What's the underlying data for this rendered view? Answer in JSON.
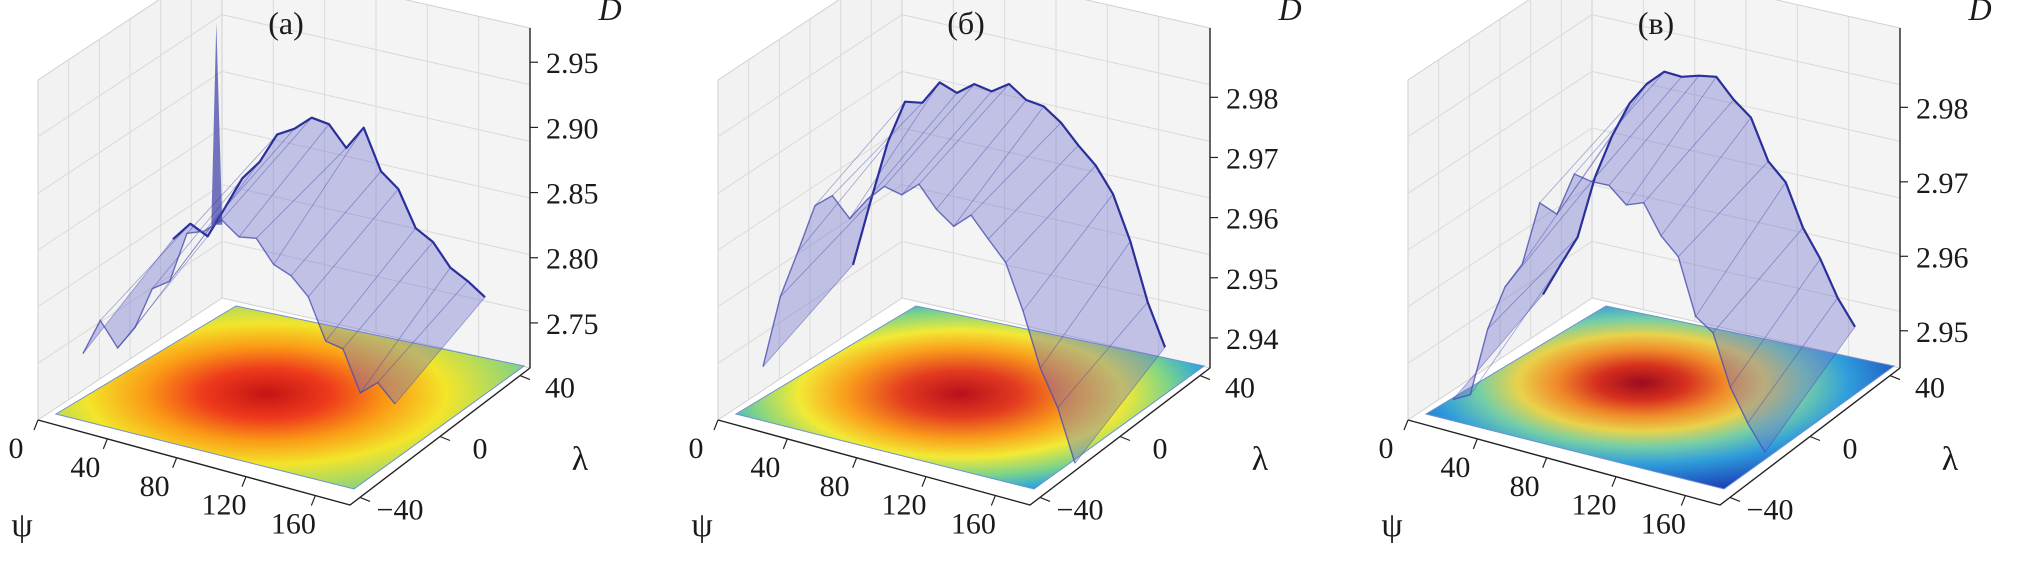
{
  "chart_data": [
    {
      "type": "surface3d",
      "title": "(а)",
      "xlabel": "ψ",
      "ylabel": "λ",
      "zlabel": "D",
      "x_ticks": [
        "0",
        "40",
        "80",
        "120",
        "160"
      ],
      "y_ticks": [
        "−40",
        "0",
        "40"
      ],
      "z_ticks": [
        "2.75",
        "2.80",
        "2.85",
        "2.90",
        "2.95"
      ],
      "xlim": [
        0,
        180
      ],
      "ylim": [
        -45,
        45
      ],
      "zlim": [
        2.72,
        2.96
      ],
      "surface_profile": {
        "psi": [
          0,
          10,
          20,
          30,
          40,
          50,
          60,
          70,
          80,
          90,
          100,
          110,
          120,
          130,
          140,
          150,
          160,
          170,
          180
        ],
        "D": [
          2.78,
          2.8,
          2.79,
          2.82,
          2.84,
          2.86,
          2.88,
          2.89,
          2.9,
          2.9,
          2.89,
          2.9,
          2.88,
          2.86,
          2.84,
          2.83,
          2.82,
          2.81,
          2.8
        ]
      },
      "annotation": "spike ≈ 2.95 near ψ ≈ 25"
    },
    {
      "type": "surface3d",
      "title": "(б)",
      "xlabel": "ψ",
      "ylabel": "λ",
      "zlabel": "D",
      "x_ticks": [
        "0",
        "40",
        "80",
        "120",
        "160"
      ],
      "y_ticks": [
        "−40",
        "0",
        "40"
      ],
      "z_ticks": [
        "2.94",
        "2.95",
        "2.96",
        "2.97",
        "2.98"
      ],
      "xlim": [
        0,
        180
      ],
      "ylim": [
        -45,
        45
      ],
      "zlim": [
        2.935,
        2.987
      ],
      "surface_profile": {
        "psi": [
          0,
          10,
          20,
          30,
          40,
          50,
          60,
          70,
          80,
          90,
          100,
          110,
          120,
          130,
          140,
          150,
          160,
          170,
          180
        ],
        "D": [
          2.945,
          2.955,
          2.965,
          2.972,
          2.975,
          2.977,
          2.978,
          2.979,
          2.979,
          2.98,
          2.979,
          2.978,
          2.977,
          2.975,
          2.972,
          2.968,
          2.96,
          2.952,
          2.944
        ]
      }
    },
    {
      "type": "surface3d",
      "title": "(в)",
      "xlabel": "ψ",
      "ylabel": "λ",
      "zlabel": "D",
      "x_ticks": [
        "0",
        "40",
        "80",
        "120",
        "160"
      ],
      "y_ticks": [
        "−40",
        "0",
        "40"
      ],
      "z_ticks": [
        "2.95",
        "2.96",
        "2.97",
        "2.98"
      ],
      "xlim": [
        0,
        180
      ],
      "ylim": [
        -45,
        45
      ],
      "zlim": [
        2.945,
        2.987
      ],
      "surface_profile": {
        "psi": [
          0,
          10,
          20,
          30,
          40,
          50,
          60,
          70,
          80,
          90,
          100,
          110,
          120,
          130,
          140,
          150,
          160,
          170,
          180
        ],
        "D": [
          2.948,
          2.952,
          2.958,
          2.965,
          2.972,
          2.977,
          2.98,
          2.982,
          2.983,
          2.984,
          2.983,
          2.981,
          2.979,
          2.975,
          2.971,
          2.966,
          2.962,
          2.958,
          2.955
        ]
      }
    }
  ]
}
